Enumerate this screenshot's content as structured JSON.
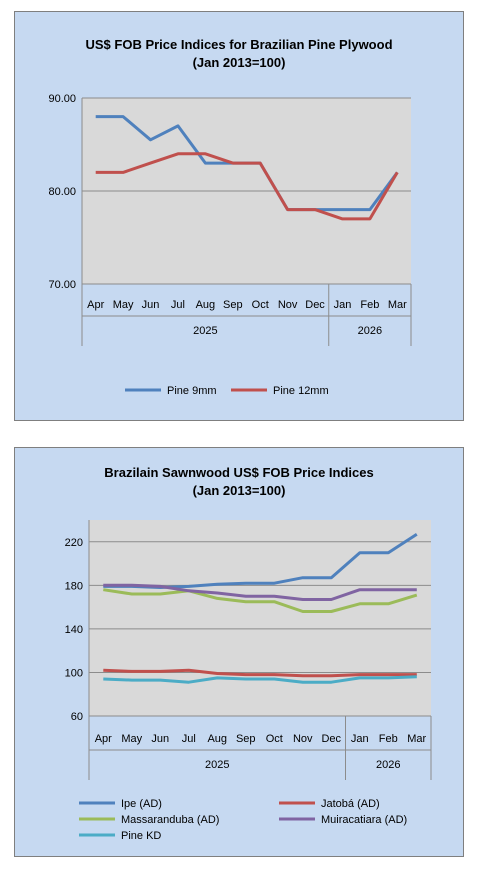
{
  "chart_data": [
    {
      "type": "line",
      "title": "US$ FOB Price Indices for Brazilian  Pine Plywood",
      "subtitle": "(Jan 2013=100)",
      "categories": [
        "Apr",
        "May",
        "Jun",
        "Jul",
        "Aug",
        "Sep",
        "Oct",
        "Nov",
        "Dec",
        "Jan",
        "Feb",
        "Mar"
      ],
      "year_groups": [
        {
          "label": "2025",
          "count": 9
        },
        {
          "label": "2026",
          "count": 3
        }
      ],
      "ylim": [
        70,
        90
      ],
      "yticks": [
        "70.00",
        "80.00",
        "90.00"
      ],
      "grid": true,
      "legend_position": "bottom",
      "series": [
        {
          "name": "Pine 9mm",
          "color": "#4f81bd",
          "values": [
            88,
            88,
            85.5,
            87,
            83,
            83,
            83,
            78,
            78,
            78,
            78,
            82
          ]
        },
        {
          "name": "Pine 12mm",
          "color": "#c0504d",
          "values": [
            82,
            82,
            83,
            84,
            84,
            83,
            83,
            78,
            78,
            77,
            77,
            82
          ]
        }
      ]
    },
    {
      "type": "line",
      "title": "Brazilain Sawnwood US$ FOB Price Indices",
      "subtitle": "(Jan 2013=100)",
      "categories": [
        "Apr",
        "May",
        "Jun",
        "Jul",
        "Aug",
        "Sep",
        "Oct",
        "Nov",
        "Dec",
        "Jan",
        "Feb",
        "Mar"
      ],
      "year_groups": [
        {
          "label": "2025",
          "count": 9
        },
        {
          "label": "2026",
          "count": 3
        }
      ],
      "ylim": [
        60,
        240
      ],
      "yticks": [
        "60",
        "100",
        "140",
        "180",
        "220"
      ],
      "grid": true,
      "legend_position": "bottom",
      "series": [
        {
          "name": "Ipe (AD)",
          "color": "#4f81bd",
          "values": [
            179,
            179,
            178,
            179,
            181,
            182,
            182,
            187,
            187,
            210,
            210,
            227
          ]
        },
        {
          "name": "Jatobá (AD)",
          "color": "#c0504d",
          "values": [
            102,
            101,
            101,
            102,
            99,
            98,
            98,
            97,
            97,
            98,
            98,
            98
          ]
        },
        {
          "name": "Massaranduba (AD)",
          "color": "#9bbb59",
          "values": [
            176,
            172,
            172,
            175,
            168,
            165,
            165,
            156,
            156,
            163,
            163,
            171
          ]
        },
        {
          "name": "Muiracatiara (AD)",
          "color": "#8064a2",
          "values": [
            180,
            180,
            179,
            175,
            173,
            170,
            170,
            167,
            167,
            176,
            176,
            176
          ]
        },
        {
          "name": "Pine KD",
          "color": "#4bacc6",
          "values": [
            94,
            93,
            93,
            91,
            95,
            94,
            94,
            91,
            91,
            95,
            95,
            96
          ]
        }
      ]
    }
  ]
}
